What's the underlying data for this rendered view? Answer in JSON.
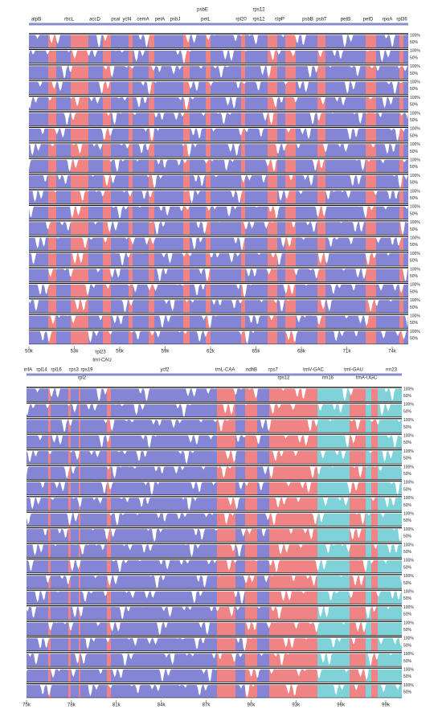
{
  "panels": [
    {
      "genes": [
        "atpB",
        "rbcL",
        "accD",
        "psaI",
        "ycf4",
        "cemA",
        "petA",
        "psbJ",
        "psbE",
        "petL",
        "rpl20",
        "rps12",
        "rps12",
        "clpP",
        "psbB",
        "psbT",
        "petB",
        "petD",
        "rpoA",
        "rpl36"
      ],
      "x_ticks": [
        "50k",
        "53k",
        "56k",
        "59k",
        "62k",
        "65k",
        "68k",
        "71k",
        "74k"
      ],
      "y_ticks": [
        "100%",
        "50%"
      ]
    },
    {
      "genes": [
        "infA",
        "rpl14",
        "rpl16",
        "rps3",
        "rps19",
        "rpl2",
        "rpl23",
        "trnI-CAU",
        "ycf2",
        "trnL-CAA",
        "ndhB",
        "rps7",
        "rps12",
        "trnV-GAC",
        "rrn16",
        "trnI-GAU",
        "trnA-UGC",
        "rrn23"
      ],
      "x_ticks": [
        "75k",
        "78k",
        "81k",
        "84k",
        "87k",
        "90k",
        "93k",
        "96k",
        "99k"
      ],
      "y_ticks": [
        "100%",
        "50%"
      ]
    }
  ]
}
